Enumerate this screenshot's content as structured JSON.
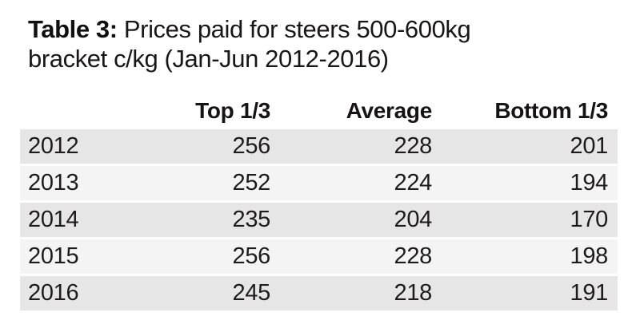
{
  "title": {
    "label": "Table 3:",
    "line1_rest": "Prices paid for steers 500-600kg",
    "line2": "bracket c/kg (Jan-Jun 2012-2016)"
  },
  "table": {
    "columns": {
      "year": "",
      "top": "Top 1/3",
      "average": "Average",
      "bottom": "Bottom 1/3"
    },
    "rows": [
      {
        "year": "2012",
        "top": "256",
        "average": "228",
        "bottom": "201"
      },
      {
        "year": "2013",
        "top": "252",
        "average": "224",
        "bottom": "194"
      },
      {
        "year": "2014",
        "top": "235",
        "average": "204",
        "bottom": "170"
      },
      {
        "year": "2015",
        "top": "256",
        "average": "228",
        "bottom": "198"
      },
      {
        "year": "2016",
        "top": "245",
        "average": "218",
        "bottom": "191"
      }
    ]
  },
  "colors": {
    "row_stripe_dark": "#e6e6e6",
    "row_stripe_light": "#f4f4f4",
    "text": "#1d1b1c",
    "background": "#ffffff"
  },
  "chart_data": {
    "type": "table",
    "title": "Table 3: Prices paid for steers 500-600kg bracket c/kg (Jan-Jun 2012-2016)",
    "categories": [
      "2012",
      "2013",
      "2014",
      "2015",
      "2016"
    ],
    "series": [
      {
        "name": "Top 1/3",
        "values": [
          256,
          252,
          235,
          256,
          245
        ]
      },
      {
        "name": "Average",
        "values": [
          228,
          224,
          204,
          228,
          218
        ]
      },
      {
        "name": "Bottom 1/3",
        "values": [
          201,
          194,
          170,
          198,
          191
        ]
      }
    ],
    "layout": {
      "striped_rows": true,
      "numbers_align": "right",
      "header_style": "bold"
    }
  }
}
